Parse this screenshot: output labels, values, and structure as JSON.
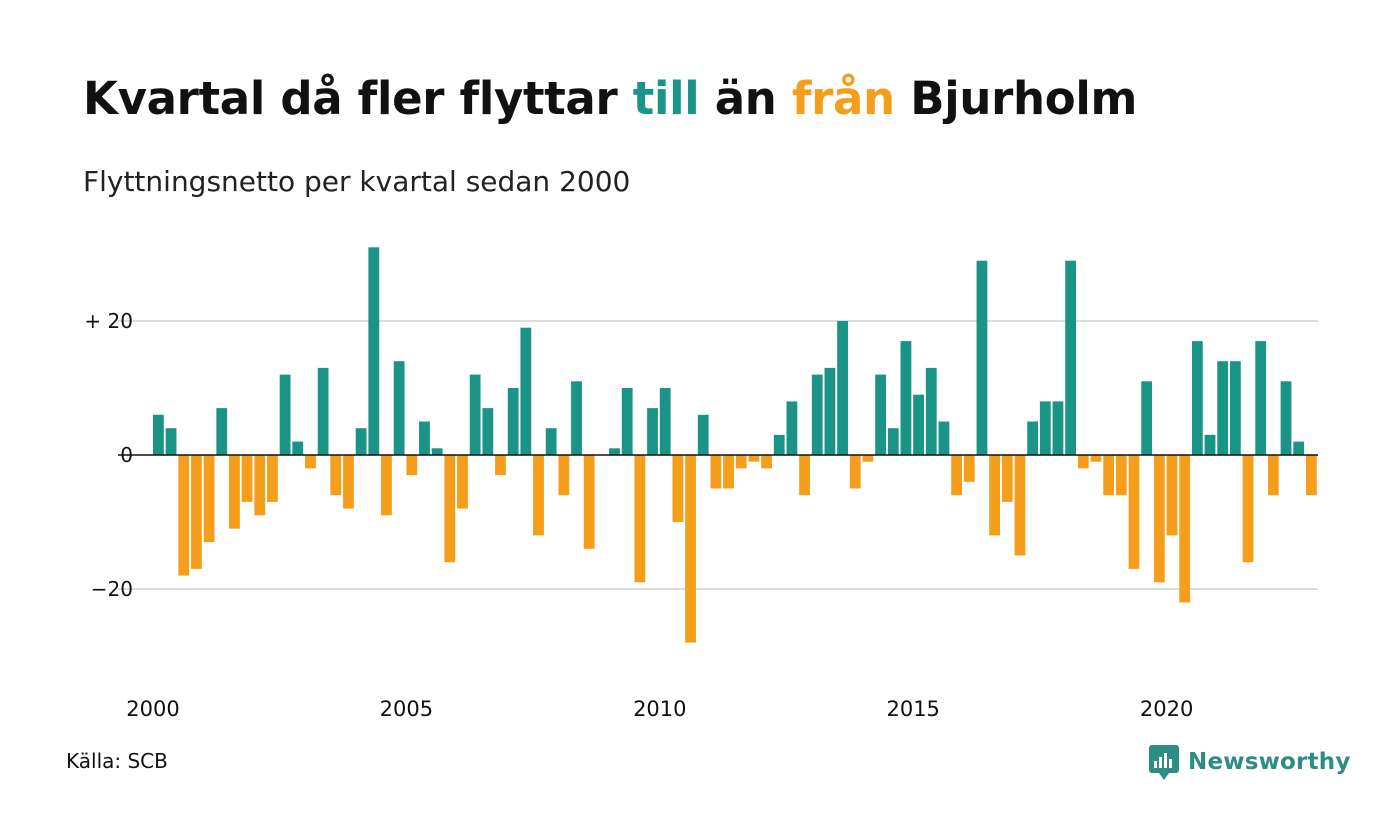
{
  "title_parts": {
    "p1": "Kvartal då fler flyttar ",
    "till": "till",
    "p2": " än ",
    "fran": "från",
    "p3": " Bjurholm"
  },
  "subtitle": "Flyttningsnetto per kvartal sedan 2000",
  "source": "Källa: SCB",
  "brand": "Newsworthy",
  "colors": {
    "positive": "#1a9486",
    "negative": "#f59e1b",
    "brand": "#2d8d84",
    "grid": "#dddddd"
  },
  "chart_data": {
    "type": "bar",
    "x_start": "2000 Q1",
    "ylim": [
      -30,
      32
    ],
    "yticks": [
      {
        "value": 20,
        "label": "+ 20"
      },
      {
        "value": 0,
        "label": "0"
      },
      {
        "value": -20,
        "label": "−20"
      }
    ],
    "xticks": [
      "2000",
      "2005",
      "2010",
      "2015",
      "2020"
    ],
    "values": [
      6,
      4,
      -18,
      -17,
      -13,
      7,
      -11,
      -7,
      -9,
      -7,
      12,
      2,
      -2,
      13,
      -6,
      -8,
      4,
      31,
      -9,
      14,
      -3,
      5,
      1,
      -16,
      -8,
      12,
      7,
      -3,
      10,
      19,
      -12,
      4,
      -6,
      11,
      -14,
      0,
      1,
      10,
      -19,
      7,
      10,
      -10,
      -28,
      6,
      -5,
      -5,
      -2,
      -1,
      -2,
      3,
      8,
      -6,
      12,
      13,
      20,
      -5,
      -1,
      12,
      4,
      17,
      9,
      13,
      5,
      -6,
      -4,
      29,
      -12,
      -7,
      -15,
      5,
      8,
      8,
      29,
      -2,
      -1,
      -6,
      -6,
      -17,
      11,
      -19,
      -12,
      -22,
      17,
      3,
      14,
      14,
      -16,
      17,
      -6,
      11,
      2,
      -6
    ]
  }
}
